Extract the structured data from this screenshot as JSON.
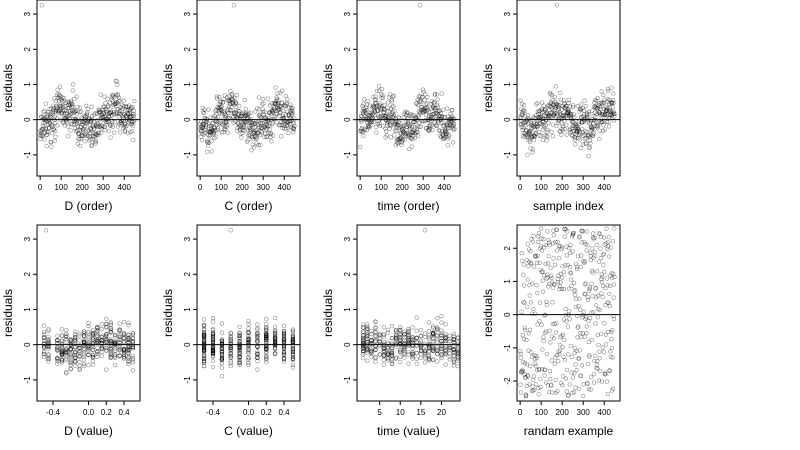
{
  "chart_data": [
    {
      "type": "scatter",
      "xlabel": "D (order)",
      "ylabel": "residuals",
      "xlim": [
        -15,
        475
      ],
      "ylim": [
        -1.6,
        3.4
      ],
      "xticks": [
        0,
        100,
        200,
        300,
        400
      ],
      "yticks": [
        -1,
        0,
        1,
        2,
        3
      ],
      "hline": 0,
      "points": {
        "pattern": "order",
        "n": 450,
        "seed": 11,
        "outlier_index": 8,
        "outlier_value": 3.25
      }
    },
    {
      "type": "scatter",
      "xlabel": "C (order)",
      "ylabel": "residuals",
      "xlim": [
        -15,
        475
      ],
      "ylim": [
        -1.6,
        3.4
      ],
      "xticks": [
        0,
        100,
        200,
        300,
        400
      ],
      "yticks": [
        -1,
        0,
        1,
        2,
        3
      ],
      "hline": 0,
      "points": {
        "pattern": "order",
        "n": 450,
        "seed": 23,
        "outlier_index": 160,
        "outlier_value": 3.25
      }
    },
    {
      "type": "scatter",
      "xlabel": "time (order)",
      "ylabel": "residuals",
      "xlim": [
        -15,
        475
      ],
      "ylim": [
        -1.6,
        3.4
      ],
      "xticks": [
        0,
        100,
        200,
        300,
        400
      ],
      "yticks": [
        -1,
        0,
        1,
        2,
        3
      ],
      "hline": 0,
      "points": {
        "pattern": "order",
        "n": 450,
        "seed": 37,
        "outlier_index": 285,
        "outlier_value": 3.25
      }
    },
    {
      "type": "scatter",
      "xlabel": "sample index",
      "ylabel": "residuals",
      "xlim": [
        -15,
        475
      ],
      "ylim": [
        -1.6,
        3.4
      ],
      "xticks": [
        0,
        100,
        200,
        300,
        400
      ],
      "yticks": [
        -1,
        0,
        1,
        2,
        3
      ],
      "hline": 0,
      "points": {
        "pattern": "order",
        "n": 450,
        "seed": 41,
        "outlier_index": 175,
        "outlier_value": 3.25
      }
    },
    {
      "type": "scatter",
      "xlabel": "D (value)",
      "ylabel": "residuals",
      "xlim": [
        -0.58,
        0.58
      ],
      "ylim": [
        -1.6,
        3.4
      ],
      "xticks": [
        -0.4,
        0,
        0.2,
        0.4
      ],
      "xticklabels": [
        "-0.4",
        "0.0",
        "0.2",
        "0.4"
      ],
      "yticks": [
        -1,
        0,
        1,
        2,
        3
      ],
      "hline": 0,
      "points": {
        "pattern": "columns",
        "n": 450,
        "seed": 53,
        "levels": [
          -0.5,
          -0.45,
          -0.35,
          -0.3,
          -0.25,
          -0.2,
          -0.15,
          -0.1,
          -0.05,
          0,
          0.05,
          0.1,
          0.15,
          0.2,
          0.25,
          0.3,
          0.35,
          0.4,
          0.45,
          0.5
        ],
        "outlier_level": -0.48,
        "outlier_value": 3.25
      }
    },
    {
      "type": "scatter",
      "xlabel": "C (value)",
      "ylabel": "residuals",
      "xlim": [
        -0.58,
        0.58
      ],
      "ylim": [
        -1.6,
        3.4
      ],
      "xticks": [
        -0.4,
        0,
        0.2,
        0.4
      ],
      "xticklabels": [
        "-0.4",
        "0.0",
        "0.2",
        "0.4"
      ],
      "yticks": [
        -1,
        0,
        1,
        2,
        3
      ],
      "hline": 0,
      "points": {
        "pattern": "columns",
        "n": 450,
        "seed": 67,
        "levels": [
          -0.5,
          -0.4,
          -0.3,
          -0.2,
          -0.1,
          0,
          0.1,
          0.2,
          0.3,
          0.4,
          0.5
        ],
        "outlier_level": -0.2,
        "outlier_value": 3.25
      }
    },
    {
      "type": "scatter",
      "xlabel": "time (value)",
      "ylabel": "residuals",
      "xlim": [
        -0.5,
        24.5
      ],
      "ylim": [
        -1.6,
        3.4
      ],
      "xticks": [
        5,
        10,
        15,
        20
      ],
      "yticks": [
        -1,
        0,
        1,
        2,
        3
      ],
      "hline": 0,
      "points": {
        "pattern": "columns",
        "n": 450,
        "seed": 79,
        "levels": [
          1,
          2,
          3,
          4,
          5,
          6,
          7,
          8,
          9,
          10,
          11,
          12,
          13,
          14,
          15,
          16,
          17,
          18,
          19,
          20,
          21,
          22,
          23,
          24
        ],
        "outlier_level": 16,
        "outlier_value": 3.25
      }
    },
    {
      "type": "scatter",
      "xlabel": "randam example",
      "ylabel": "residuals",
      "xlim": [
        -15,
        475
      ],
      "ylim": [
        -2.6,
        2.7
      ],
      "xticks": [
        0,
        100,
        200,
        300,
        400
      ],
      "yticks": [
        -2,
        -1,
        0,
        1,
        2
      ],
      "hline": 0,
      "points": {
        "pattern": "uniform",
        "n": 450,
        "seed": 97,
        "range": [
          -2.5,
          2.6
        ]
      }
    }
  ]
}
